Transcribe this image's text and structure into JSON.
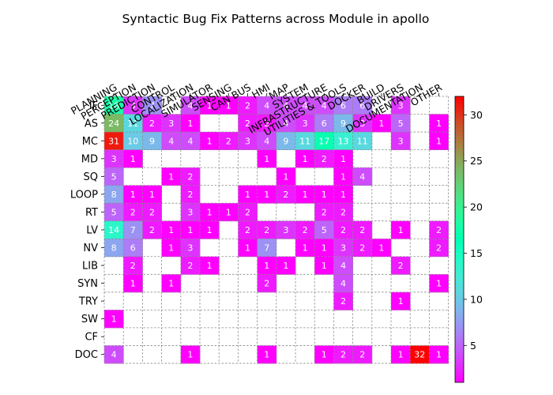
{
  "chart_data": {
    "type": "heatmap",
    "title": "Syntactic Bug Fix Patterns across Module in apollo",
    "x_categories": [
      "PLANNING",
      "PERCEPTION",
      "PREDICTION",
      "CONTROL",
      "LOCALIZATION",
      "SIMULATOR",
      "SENSING",
      "CAN BUS",
      "HMI",
      "MAP",
      "SYSTEM",
      "INFRASTRUCTURE",
      "UTILITIES & TOOLS",
      "DOCKER",
      "BUILD",
      "DRIVERS",
      "DOCUMENTATION",
      "OTHER"
    ],
    "y_categories": [
      "IF",
      "AS",
      "MC",
      "MD",
      "SQ",
      "LOOP",
      "RT",
      "LV",
      "NV",
      "LIB",
      "SYN",
      "TRY",
      "SW",
      "CF",
      "DOC"
    ],
    "values": [
      [
        18,
        3,
        7,
        null,
        4,
        1,
        1,
        2,
        4,
        4,
        4,
        4,
        6,
        6,
        null,
        3,
        null,
        null
      ],
      [
        24,
        11,
        2,
        3,
        1,
        null,
        null,
        2,
        2,
        4,
        3,
        6,
        9,
        3,
        1,
        5,
        null,
        1
      ],
      [
        31,
        10,
        9,
        4,
        4,
        1,
        2,
        3,
        4,
        9,
        11,
        17,
        13,
        11,
        null,
        3,
        null,
        1
      ],
      [
        3,
        1,
        null,
        null,
        null,
        null,
        null,
        null,
        1,
        null,
        1,
        2,
        1,
        null,
        null,
        null,
        null,
        null
      ],
      [
        5,
        null,
        null,
        1,
        2,
        null,
        null,
        null,
        null,
        1,
        null,
        null,
        1,
        4,
        null,
        null,
        null,
        null
      ],
      [
        8,
        1,
        1,
        null,
        2,
        null,
        null,
        1,
        1,
        2,
        1,
        1,
        1,
        null,
        null,
        null,
        null,
        null
      ],
      [
        5,
        2,
        2,
        null,
        3,
        1,
        1,
        2,
        null,
        null,
        null,
        2,
        2,
        null,
        null,
        null,
        null,
        null
      ],
      [
        14,
        7,
        2,
        1,
        1,
        1,
        null,
        2,
        2,
        3,
        2,
        5,
        2,
        2,
        null,
        1,
        null,
        2
      ],
      [
        8,
        6,
        null,
        1,
        3,
        null,
        null,
        1,
        7,
        null,
        1,
        1,
        3,
        2,
        1,
        null,
        null,
        2
      ],
      [
        null,
        2,
        null,
        null,
        2,
        1,
        null,
        null,
        1,
        1,
        null,
        1,
        4,
        null,
        null,
        2,
        null,
        null
      ],
      [
        null,
        1,
        null,
        1,
        null,
        null,
        null,
        null,
        2,
        null,
        null,
        null,
        4,
        null,
        null,
        null,
        null,
        1
      ],
      [
        null,
        null,
        null,
        null,
        null,
        null,
        null,
        null,
        null,
        null,
        null,
        null,
        2,
        null,
        null,
        1,
        null,
        null
      ],
      [
        1,
        null,
        null,
        null,
        null,
        null,
        null,
        null,
        null,
        null,
        null,
        null,
        null,
        null,
        null,
        null,
        null,
        null
      ],
      [
        null,
        null,
        null,
        null,
        null,
        null,
        null,
        null,
        null,
        null,
        null,
        null,
        null,
        null,
        null,
        null,
        null,
        null
      ],
      [
        4,
        null,
        null,
        null,
        1,
        null,
        null,
        null,
        1,
        null,
        null,
        1,
        2,
        2,
        null,
        1,
        32,
        1
      ]
    ],
    "colormap": "rainbow",
    "vmin": 1,
    "vmax": 32,
    "colorbar_ticks": [
      5,
      10,
      15,
      20,
      25,
      30
    ],
    "grid": true
  }
}
